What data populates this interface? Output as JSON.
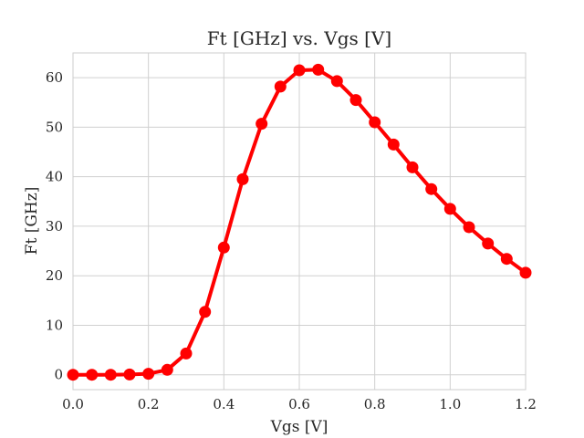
{
  "chart_data": {
    "type": "line",
    "title": "Ft [GHz] vs. Vgs [V]",
    "xlabel": "Vgs [V]",
    "ylabel": "Ft [GHz]",
    "xlim": [
      0.0,
      1.2
    ],
    "ylim": [
      -3,
      65
    ],
    "xticks": [
      0.0,
      0.2,
      0.4,
      0.6,
      0.8,
      1.0,
      1.2
    ],
    "xtick_labels": [
      "0.0",
      "0.2",
      "0.4",
      "0.6",
      "0.8",
      "1.0",
      "1.2"
    ],
    "yticks": [
      0,
      10,
      20,
      30,
      40,
      50,
      60
    ],
    "ytick_labels": [
      "0",
      "10",
      "20",
      "30",
      "40",
      "50",
      "60"
    ],
    "grid": true,
    "series": [
      {
        "color": "#ff0000",
        "marker": "circle",
        "x": [
          0.0,
          0.05,
          0.1,
          0.15,
          0.2,
          0.25,
          0.3,
          0.35,
          0.4,
          0.45,
          0.5,
          0.55,
          0.6,
          0.65,
          0.7,
          0.75,
          0.8,
          0.85,
          0.9,
          0.95,
          1.0,
          1.05,
          1.1,
          1.15,
          1.2
        ],
        "y": [
          0.0,
          0.0,
          0.0,
          0.05,
          0.2,
          1.0,
          4.3,
          12.7,
          25.7,
          39.5,
          50.7,
          58.2,
          61.5,
          61.6,
          59.3,
          55.5,
          51.0,
          46.5,
          41.9,
          37.5,
          33.5,
          29.8,
          26.5,
          23.4,
          20.6
        ]
      }
    ]
  }
}
